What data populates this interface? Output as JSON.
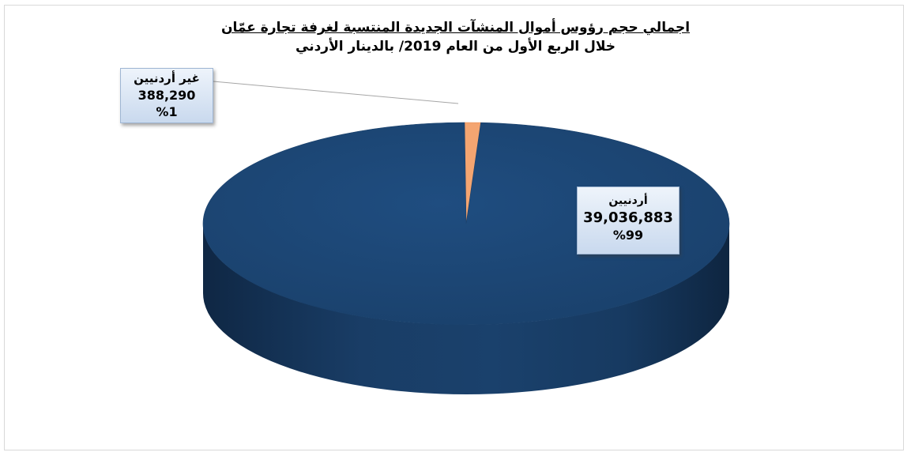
{
  "chart_data": {
    "type": "pie",
    "title_line1": "اجمالي حجم رؤوس أموال المنشآت الجديدة المنتسبة لغرفة تجارة عمّان",
    "title_line2": "خلال الربع الأول من العام 2019/ بالدينار الأردني",
    "slices": [
      {
        "label": "أردنيين",
        "value": 39036883,
        "value_text": "39,036,883",
        "percent_text": "%99",
        "color": "#1f497d"
      },
      {
        "label": "غير أردنيين",
        "value": 388290,
        "value_text": "388,290",
        "percent_text": "%1",
        "color": "#f4a571"
      }
    ],
    "style": "3d",
    "legend": "none"
  }
}
